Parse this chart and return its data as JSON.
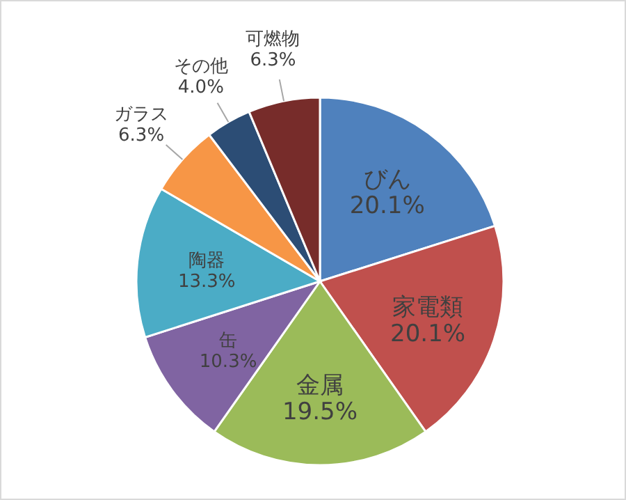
{
  "chart_data": {
    "type": "pie",
    "categories": [
      "びん",
      "家電類",
      "金属",
      "缶",
      "陶器",
      "ガラス",
      "その他",
      "可燃物"
    ],
    "values": [
      20.1,
      20.1,
      19.5,
      10.3,
      13.3,
      6.3,
      4.0,
      6.3
    ],
    "colors": [
      "#4f81bd",
      "#c0504d",
      "#9bbb59",
      "#8064a2",
      "#4bacc6",
      "#f79646",
      "#2c4d75",
      "#772c2a"
    ],
    "value_labels": [
      "20.1%",
      "20.1%",
      "19.5%",
      "10.3%",
      "13.3%",
      "6.3%",
      "4.0%",
      "6.3%"
    ]
  }
}
